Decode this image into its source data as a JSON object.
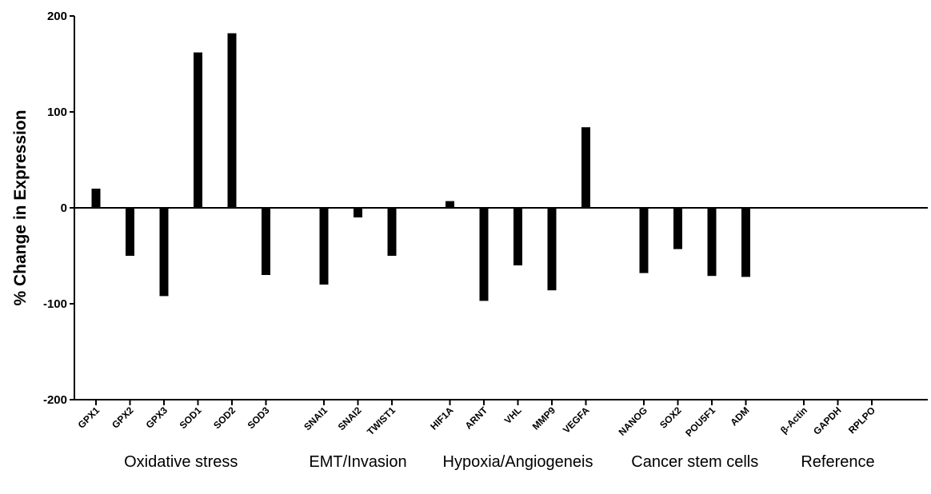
{
  "chart_data": {
    "type": "bar",
    "title": "",
    "xlabel": "",
    "ylabel": "% Change in Expression",
    "ylim": [
      -200,
      200
    ],
    "yticks": [
      -200,
      -100,
      0,
      100,
      200
    ],
    "grid": false,
    "categories": [
      "GPX1",
      "GPX2",
      "GPX3",
      "SOD1",
      "SOD2",
      "SOD3",
      "SNAI1",
      "SNAI2",
      "TWIST1",
      "HIF1A",
      "ARNT",
      "VHL",
      "MMP9",
      "VEGFA",
      "NANOG",
      "SOX2",
      "POU5F1",
      "ADM",
      "β-Actin",
      "GAPDH",
      "RPLPO"
    ],
    "values": [
      20,
      -50,
      -92,
      162,
      182,
      -70,
      -80,
      -10,
      -50,
      7,
      -97,
      -60,
      -86,
      84,
      -68,
      -43,
      -71,
      -72,
      0,
      0,
      0
    ],
    "groups": [
      {
        "label": "Oxidative stress",
        "categories": [
          "GPX1",
          "GPX2",
          "GPX3",
          "SOD1",
          "SOD2",
          "SOD3"
        ]
      },
      {
        "label": "EMT/Invasion",
        "categories": [
          "SNAI1",
          "SNAI2",
          "TWIST1"
        ]
      },
      {
        "label": "Hypoxia/Angiogeneis",
        "categories": [
          "HIF1A",
          "ARNT",
          "VHL",
          "MMP9",
          "VEGFA"
        ]
      },
      {
        "label": "Cancer stem cells",
        "categories": [
          "NANOG",
          "SOX2",
          "POU5F1",
          "ADM"
        ]
      },
      {
        "label": "Reference",
        "categories": [
          "β-Actin",
          "GAPDH",
          "RPLPO"
        ]
      }
    ],
    "bar_color": "#000000"
  }
}
